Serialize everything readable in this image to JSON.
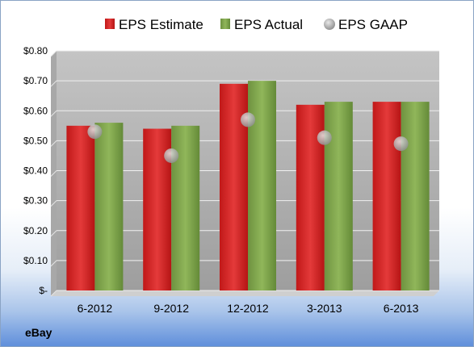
{
  "company": "eBay",
  "chart_data": {
    "type": "bar",
    "categories": [
      "6-2012",
      "9-2012",
      "12-2012",
      "3-2013",
      "6-2013"
    ],
    "series": [
      {
        "name": "EPS Estimate",
        "kind": "bar",
        "color": "#d42424",
        "values": [
          0.55,
          0.54,
          0.69,
          0.62,
          0.63
        ]
      },
      {
        "name": "EPS Actual",
        "kind": "bar",
        "color": "#7ea34a",
        "values": [
          0.56,
          0.55,
          0.7,
          0.63,
          0.63
        ]
      },
      {
        "name": "EPS GAAP",
        "kind": "marker",
        "color": "#a6a6a6",
        "values": [
          0.53,
          0.45,
          0.57,
          0.51,
          0.49
        ]
      }
    ],
    "yticks": [
      "$-",
      "$0.10",
      "$0.20",
      "$0.30",
      "$0.40",
      "$0.50",
      "$0.60",
      "$0.70",
      "$0.80"
    ],
    "ylim": [
      0,
      0.8
    ],
    "grid": true,
    "legend": "top"
  }
}
